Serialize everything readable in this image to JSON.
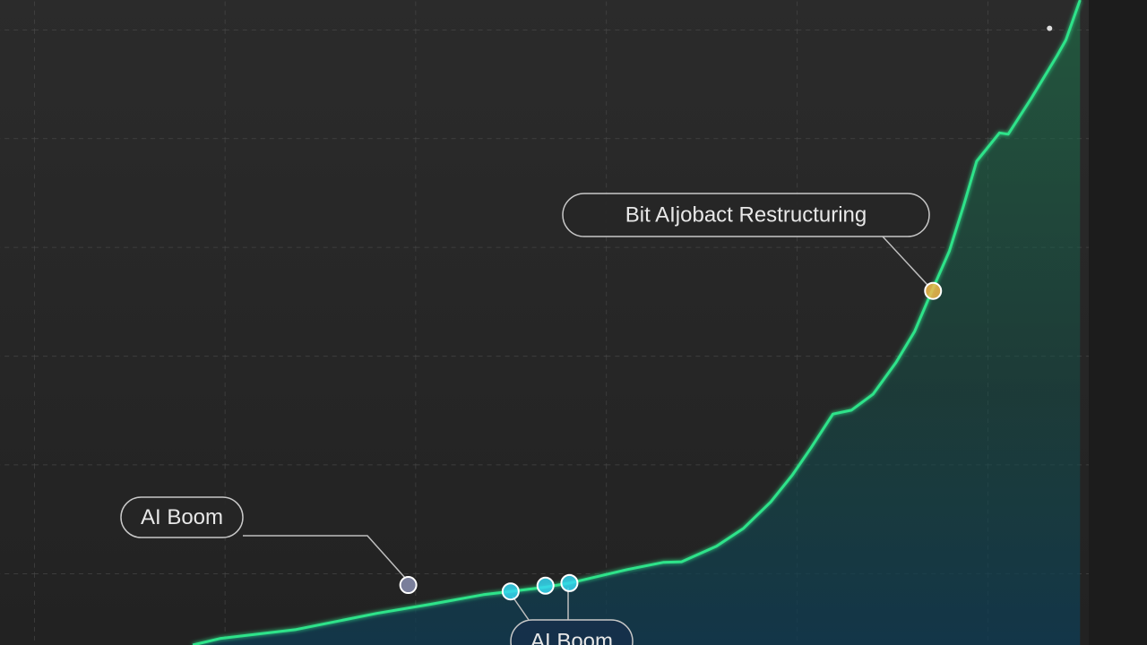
{
  "chart_data": {
    "type": "line",
    "xlim": [
      0,
      100
    ],
    "ylim": [
      0,
      100
    ],
    "series": [
      {
        "color": "#2fe38a",
        "x": [
          17.7,
          20.2,
          27.2,
          34.6,
          39.5,
          44.4,
          46.9,
          50.2,
          52.3,
          57.6,
          60.9,
          62.6,
          65.8,
          68.3,
          70.8,
          72.8,
          74.5,
          76.5,
          78.2,
          80.2,
          82.3,
          84.0,
          85.6,
          87.2,
          88.5,
          89.7,
          91.8,
          92.6,
          94.7,
          97.1,
          97.9,
          99.2
        ],
        "values": [
          0,
          1.0,
          2.4,
          4.9,
          6.3,
          7.8,
          8.3,
          9.0,
          9.6,
          11.7,
          12.8,
          12.9,
          15.3,
          18.1,
          22.2,
          26.4,
          30.6,
          35.8,
          36.4,
          38.9,
          43.8,
          48.6,
          54.9,
          61.1,
          68.1,
          75.0,
          79.4,
          79.2,
          84.7,
          91.4,
          93.8,
          100
        ]
      }
    ],
    "markers": [
      {
        "x": 37.5,
        "y": 9.3,
        "color": "#8a8fb0"
      },
      {
        "x": 46.9,
        "y": 8.3,
        "color": "#35d6f0"
      },
      {
        "x": 50.1,
        "y": 9.2,
        "color": "#35d6f0"
      },
      {
        "x": 52.3,
        "y": 9.6,
        "color": "#35d6f0"
      },
      {
        "x": 85.7,
        "y": 54.9,
        "color": "#f2b84b"
      },
      {
        "x": 96.4,
        "y": 95.6,
        "color": "#dddddd"
      }
    ],
    "annotations": [
      {
        "text": "AI Boom"
      },
      {
        "text": "Bit AIjobact Restructuring"
      },
      {
        "text": "AI Boom"
      }
    ]
  }
}
